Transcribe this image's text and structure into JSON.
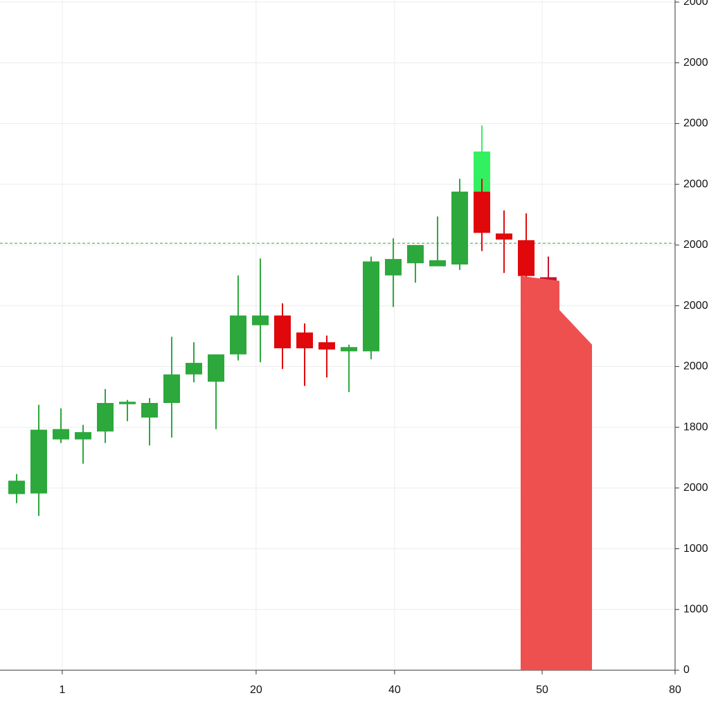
{
  "chart_data": {
    "type": "candlestick",
    "x": [
      1,
      2,
      3,
      4,
      5,
      6,
      7,
      8,
      9,
      10,
      11,
      12,
      13,
      14,
      15,
      16,
      17,
      18,
      19,
      20,
      21,
      22,
      22,
      23,
      24,
      25
    ],
    "open": [
      290,
      291,
      380,
      380,
      393,
      438,
      416,
      440,
      487,
      475,
      520,
      568,
      584,
      556,
      540,
      525,
      525,
      650,
      670,
      665,
      668,
      788,
      788,
      719,
      708,
      647
    ],
    "high": [
      323,
      437,
      431,
      404,
      463,
      445,
      448,
      549,
      540,
      520,
      650,
      678,
      604,
      571,
      551,
      536,
      681,
      711,
      700,
      747,
      809,
      897,
      809,
      757,
      752,
      681
    ],
    "low": [
      275,
      254,
      374,
      340,
      374,
      410,
      370,
      383,
      474,
      397,
      510,
      507,
      496,
      468,
      482,
      458,
      512,
      598,
      638,
      665,
      659,
      788,
      690,
      654,
      621,
      641
    ],
    "close": [
      312,
      396,
      397,
      392,
      440,
      442,
      440,
      487,
      506,
      520,
      584,
      584,
      530,
      530,
      528,
      532,
      673,
      677,
      700,
      675,
      788,
      854,
      720,
      709,
      649,
      641
    ],
    "colors": [
      "#2ca83c",
      "#2ca83c",
      "#2ca83c",
      "#2ca83c",
      "#2ca83c",
      "#2ca83c",
      "#2ca83c",
      "#2ca83c",
      "#2ca83c",
      "#2ca83c",
      "#2ca83c",
      "#2ca83c",
      "#e0080b",
      "#e0080b",
      "#e0080b",
      "#2ca83c",
      "#2ca83c",
      "#2ca83c",
      "#2ca83c",
      "#2ca83c",
      "#2ca83c",
      "#33f060",
      "#e0080b",
      "#e0080b",
      "#e0080b",
      "#c8102e"
    ],
    "area": {
      "x": [
        23.75,
        25.5,
        25.5,
        26.97
      ],
      "values": [
        649,
        641,
        593,
        536
      ],
      "color": "#ee5050"
    },
    "hline": {
      "value": 703,
      "color": "#2ca83c"
    },
    "xlim": [
      0.25,
      30.72
    ],
    "xticks": [
      {
        "value": 3.06,
        "label": "1"
      },
      {
        "value": 11.81,
        "label": "20"
      },
      {
        "value": 18.06,
        "label": "40"
      },
      {
        "value": 24.72,
        "label": "50"
      },
      {
        "value": 30.72,
        "label": "80"
      }
    ],
    "ylim": [
      0,
      1100
    ],
    "yticks": [
      0,
      {
        "value": 100,
        "label": "1000"
      },
      {
        "value": 200,
        "label": "1000"
      },
      {
        "value": 300,
        "label": "2000"
      },
      {
        "value": 400,
        "label": "1800"
      },
      {
        "value": 500,
        "label": "2000"
      },
      {
        "value": 600,
        "label": "2000"
      },
      {
        "value": 700,
        "label": "2000"
      },
      {
        "value": 800,
        "label": "2000"
      },
      {
        "value": 900,
        "label": "2000"
      },
      {
        "value": 1000,
        "label": "2000"
      },
      {
        "value": 1100,
        "label": "2000"
      }
    ],
    "grid": true
  }
}
